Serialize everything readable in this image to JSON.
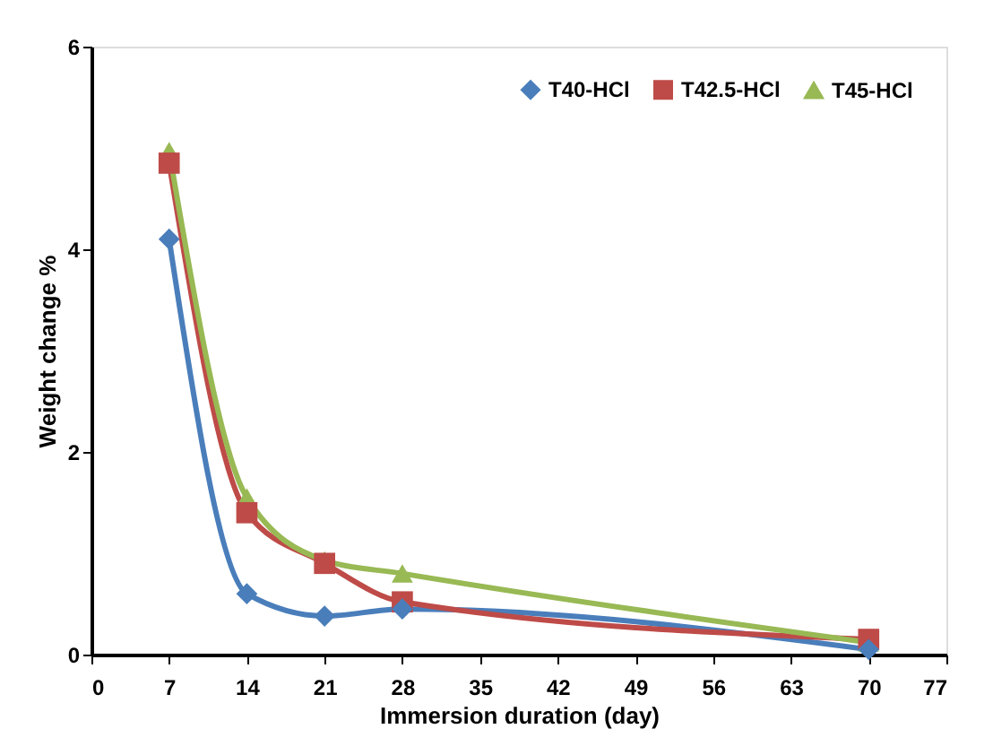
{
  "chart_data": {
    "type": "line",
    "xlabel": "Immersion duration (day)",
    "ylabel": "Weight change %",
    "x": [
      7,
      14,
      21,
      28,
      70
    ],
    "xlim": [
      0,
      77
    ],
    "xticks": [
      0,
      7,
      14,
      21,
      28,
      35,
      42,
      49,
      56,
      63,
      70,
      77
    ],
    "ylim": [
      0,
      6
    ],
    "yticks": [
      0,
      2,
      4,
      6
    ],
    "grid": false,
    "legend": "top right",
    "series": [
      {
        "name": "T40-HCl",
        "color": "#4a7ebb",
        "marker": "diamond",
        "values": [
          4.1,
          0.6,
          0.38,
          0.45,
          0.05
        ]
      },
      {
        "name": "T42.5-HCl",
        "color": "#be4b48",
        "marker": "square",
        "values": [
          4.85,
          1.4,
          0.9,
          0.52,
          0.15
        ]
      },
      {
        "name": "T45-HCl",
        "color": "#98b954",
        "marker": "triangle",
        "values": [
          4.97,
          1.55,
          0.93,
          0.8,
          0.12
        ]
      }
    ]
  }
}
